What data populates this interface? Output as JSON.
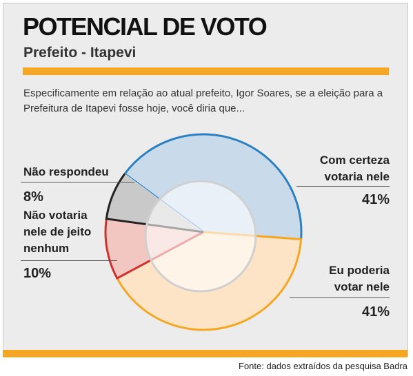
{
  "chart_data": {
    "type": "pie",
    "title": "POTENCIAL DE VOTO",
    "subtitle": "Prefeito - Itapevi",
    "description": "Especificamente em relação ao atual prefeito, Igor Soares, se a eleição para a Prefeitura de Itapevi fosse hoje, você diria que...",
    "categories": [
      "Com certeza votaria nele",
      "Eu poderia votar nele",
      "Não votaria nele de jeito nenhum",
      "Não respondeu"
    ],
    "values": [
      41,
      41,
      10,
      8
    ],
    "value_labels": [
      "41%",
      "41%",
      "10%",
      "8%"
    ],
    "colors": [
      "#c9daeb",
      "#fde4c6",
      "#f2c6c1",
      "#c9c9c9"
    ],
    "edge_colors": [
      "#2b80c2",
      "#f5a623",
      "#d0312d",
      "#222222"
    ],
    "source": "Fonte: dados extraídos da pesquisa Badra"
  }
}
